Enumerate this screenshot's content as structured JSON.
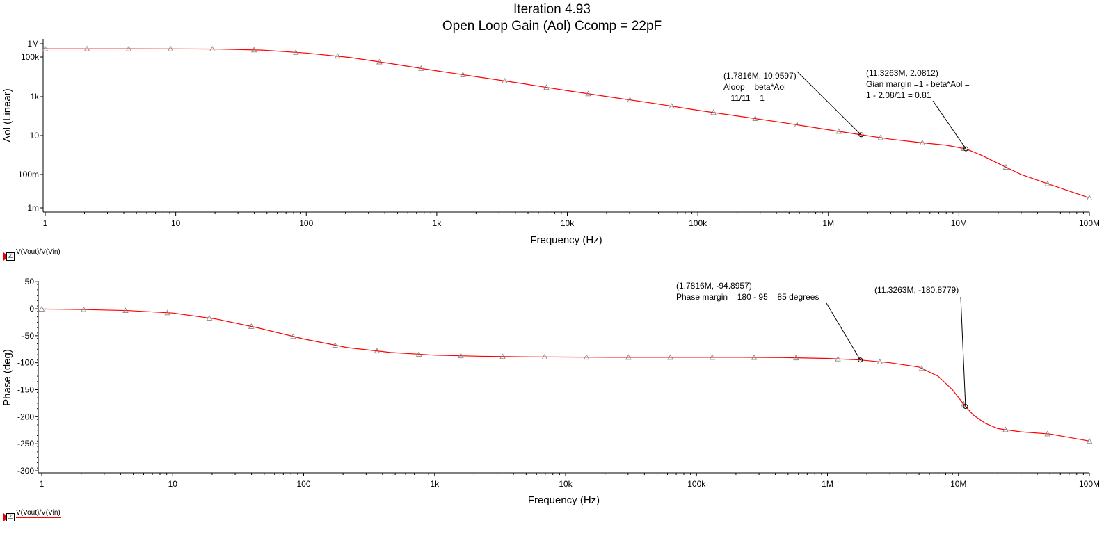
{
  "title_line1": "Iteration 4.93",
  "title_line2": "Open Loop Gain (Aol) Ccomp = 22pF",
  "colors": {
    "trace": "#ff0000",
    "marker": "#888888",
    "axis": "#000000",
    "annotation": "#000000"
  },
  "chart_data": [
    {
      "type": "line",
      "xlabel": "Frequency (Hz)",
      "ylabel": "Aol (Linear)",
      "xscale": "log",
      "yscale": "log",
      "xlim": [
        1,
        100000000
      ],
      "x_ticks": [
        {
          "value": 1,
          "label": "1"
        },
        {
          "value": 10,
          "label": "10"
        },
        {
          "value": 100,
          "label": "100"
        },
        {
          "value": 1000,
          "label": "1k"
        },
        {
          "value": 10000,
          "label": "10k"
        },
        {
          "value": 100000,
          "label": "100k"
        },
        {
          "value": 1000000,
          "label": "1M"
        },
        {
          "value": 10000000,
          "label": "10M"
        },
        {
          "value": 100000000,
          "label": "100M"
        }
      ],
      "y_ticks": [
        {
          "value": 0.001,
          "label": "1m"
        },
        {
          "value": 0.1,
          "label": "100m"
        },
        {
          "value": 10,
          "label": "10"
        },
        {
          "value": 1000,
          "label": "1k"
        },
        {
          "value": 100000,
          "label": "100k"
        },
        {
          "value": 1000000,
          "label": "1M"
        }
      ],
      "series": [
        {
          "name": "V(Vout)/V(Vin)",
          "x": [
            1,
            2.15,
            4.6,
            10,
            21.5,
            46,
            100,
            215,
            460,
            1000,
            2150,
            4600,
            10000,
            21500,
            46000,
            100000,
            215000,
            460000,
            1000000,
            1781600,
            3000000,
            5000000,
            8000000,
            11326300,
            15000000,
            20000000,
            30000000,
            50000000,
            100000000
          ],
          "y": [
            420000,
            420000,
            420000,
            415000,
            400000,
            330000,
            200000,
            95000,
            45000,
            20000,
            9500,
            4500,
            2000,
            950,
            450,
            200,
            95,
            45,
            20,
            10.9597,
            6.5,
            4.4,
            3.2,
            2.0812,
            0.95,
            0.37,
            0.1,
            0.025,
            0.004
          ]
        }
      ],
      "cursors": [
        {
          "x": 1781600,
          "y": 10.9597,
          "label_lines": [
            "(1.7816M, 10.9597)",
            "Aloop = beta*Aol",
            "= 11/11 = 1"
          ]
        },
        {
          "x": 11326300,
          "y": 2.0812,
          "label_lines": [
            "(11.3263M, 2.0812)",
            "Gian margin =1 - beta*Aol =",
            "1 - 2.08/11 = 0.81"
          ]
        }
      ],
      "legend": {
        "label": "V(Vout)/V(Vin)",
        "checked": "☑"
      }
    },
    {
      "type": "line",
      "xlabel": "Frequency (Hz)",
      "ylabel": "Phase (deg)",
      "xscale": "log",
      "xlim": [
        1,
        100000000
      ],
      "ylim": [
        -310,
        50
      ],
      "x_ticks": [
        {
          "value": 1,
          "label": "1"
        },
        {
          "value": 10,
          "label": "10"
        },
        {
          "value": 100,
          "label": "100"
        },
        {
          "value": 1000,
          "label": "1k"
        },
        {
          "value": 10000,
          "label": "10k"
        },
        {
          "value": 100000,
          "label": "100k"
        },
        {
          "value": 1000000,
          "label": "1M"
        },
        {
          "value": 10000000,
          "label": "10M"
        },
        {
          "value": 100000000,
          "label": "100M"
        }
      ],
      "y_ticks": [
        {
          "value": 50,
          "label": "50"
        },
        {
          "value": 0,
          "label": "0"
        },
        {
          "value": -50,
          "label": "-50"
        },
        {
          "value": -100,
          "label": "-100"
        },
        {
          "value": -150,
          "label": "-150"
        },
        {
          "value": -200,
          "label": "-200"
        },
        {
          "value": -250,
          "label": "-250"
        },
        {
          "value": -300,
          "label": "-300"
        }
      ],
      "series": [
        {
          "name": "V(Vout)/V(Vin)",
          "x": [
            1,
            2.15,
            4.6,
            10,
            21.5,
            46,
            100,
            215,
            460,
            1000,
            2150,
            4600,
            10000,
            21500,
            46000,
            100000,
            215000,
            460000,
            1000000,
            1781600,
            3000000,
            5000000,
            7000000,
            9000000,
            11326300,
            13000000,
            16000000,
            20000000,
            30000000,
            50000000,
            100000000
          ],
          "y": [
            -0.5,
            -1.5,
            -3.5,
            -8,
            -19,
            -36,
            -56,
            -72,
            -81,
            -86,
            -88,
            -89,
            -89.5,
            -90,
            -90,
            -90,
            -90,
            -90.5,
            -92,
            -94.8957,
            -100,
            -108,
            -125,
            -150,
            -180.8779,
            -197,
            -212,
            -222,
            -228,
            -232,
            -245
          ]
        }
      ],
      "cursors": [
        {
          "x": 1781600,
          "y": -94.8957,
          "label_lines": [
            "(1.7816M, -94.8957)",
            "Phase margin = 180 - 95 = 85 degrees"
          ]
        },
        {
          "x": 11326300,
          "y": -180.8779,
          "label_lines": [
            "(11.3263M, -180.8779)"
          ]
        }
      ],
      "legend": {
        "label": "V(Vout)/V(Vin)",
        "checked": "☑"
      }
    }
  ]
}
